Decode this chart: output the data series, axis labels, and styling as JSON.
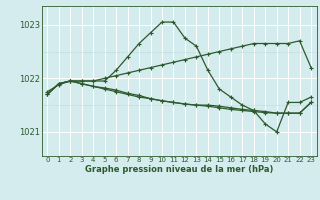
{
  "title": "Graphe pression niveau de la mer (hPa)",
  "bg_color": "#d4ecee",
  "grid_color_major": "#ffffff",
  "grid_color_minor": "#c0dde0",
  "line_color": "#2d5a2d",
  "markersize": 2.5,
  "linewidth": 0.9,
  "xlim": [
    -0.5,
    23.5
  ],
  "ylim": [
    1020.55,
    1023.35
  ],
  "yticks": [
    1021,
    1022,
    1023
  ],
  "xticks": [
    0,
    1,
    2,
    3,
    4,
    5,
    6,
    7,
    8,
    9,
    10,
    11,
    12,
    13,
    14,
    15,
    16,
    17,
    18,
    19,
    20,
    21,
    22,
    23
  ],
  "series": [
    [
      1021.7,
      1021.9,
      1021.95,
      1021.95,
      1021.95,
      1021.95,
      1022.15,
      1022.4,
      1022.65,
      1022.85,
      1023.05,
      1023.05,
      1022.75,
      1022.6,
      1022.15,
      1021.8,
      1021.65,
      1021.5,
      1021.4,
      1021.15,
      1021.0,
      1021.55,
      1021.55,
      1021.65
    ],
    [
      1021.7,
      1021.9,
      1021.95,
      1021.95,
      1021.95,
      1022.0,
      1022.05,
      1022.1,
      1022.15,
      1022.2,
      1022.25,
      1022.3,
      1022.35,
      1022.4,
      1022.45,
      1022.5,
      1022.55,
      1022.6,
      1022.65,
      1022.65,
      1022.65,
      1022.65,
      1022.7,
      1022.2
    ],
    [
      1021.7,
      1021.9,
      1021.95,
      1021.9,
      1021.85,
      1021.82,
      1021.78,
      1021.72,
      1021.68,
      1021.62,
      1021.58,
      1021.55,
      1021.52,
      1021.5,
      1021.5,
      1021.48,
      1021.45,
      1021.42,
      1021.4,
      1021.38,
      1021.35,
      1021.35,
      1021.35,
      1021.55
    ],
    [
      1021.75,
      1021.88,
      1021.95,
      1021.9,
      1021.85,
      1021.8,
      1021.75,
      1021.7,
      1021.65,
      1021.62,
      1021.58,
      1021.55,
      1021.52,
      1021.5,
      1021.48,
      1021.45,
      1021.42,
      1021.4,
      1021.38,
      1021.36,
      1021.35,
      1021.35,
      1021.35,
      1021.55
    ]
  ]
}
